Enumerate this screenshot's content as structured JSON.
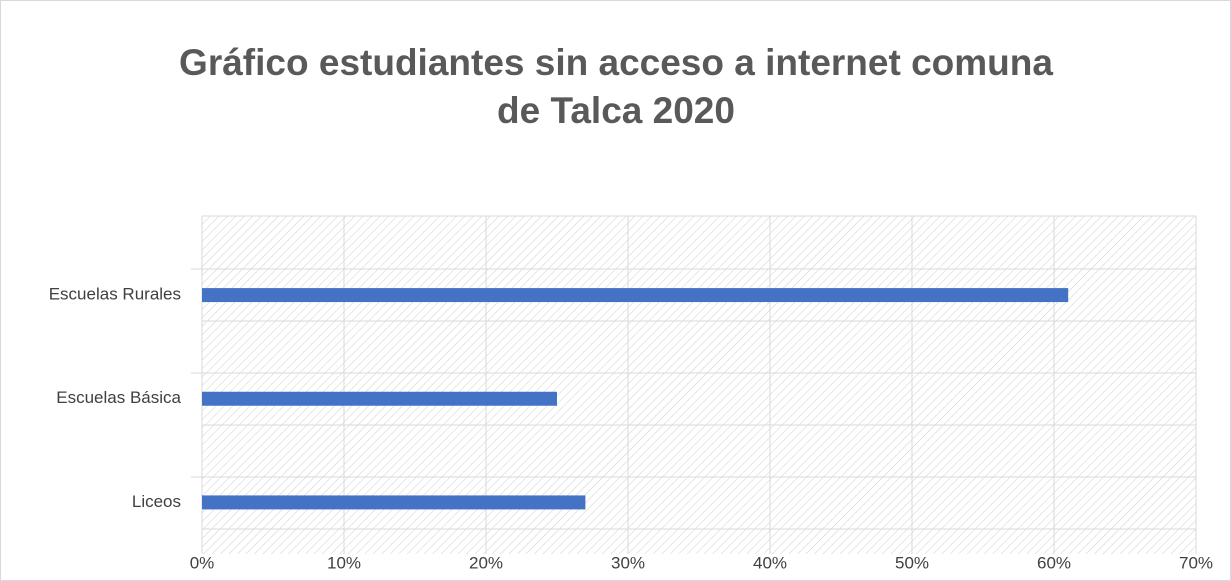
{
  "chart_data": {
    "type": "bar",
    "orientation": "horizontal",
    "title": "Gráfico estudiantes sin acceso a internet comuna de Talca 2020",
    "categories": [
      "Escuelas Rurales",
      "Escuelas Básica",
      "Liceos"
    ],
    "values": [
      61,
      25,
      27
    ],
    "color": "#4472c4",
    "xlim": [
      0,
      70
    ],
    "xticks": [
      {
        "value": 0,
        "label": "0%"
      },
      {
        "value": 10,
        "label": "10%"
      },
      {
        "value": 20,
        "label": "20%"
      },
      {
        "value": 30,
        "label": "30%"
      },
      {
        "value": 40,
        "label": "40%"
      },
      {
        "value": 50,
        "label": "50%"
      },
      {
        "value": 60,
        "label": "60%"
      },
      {
        "value": 70,
        "label": "70%"
      }
    ],
    "grid": true
  }
}
